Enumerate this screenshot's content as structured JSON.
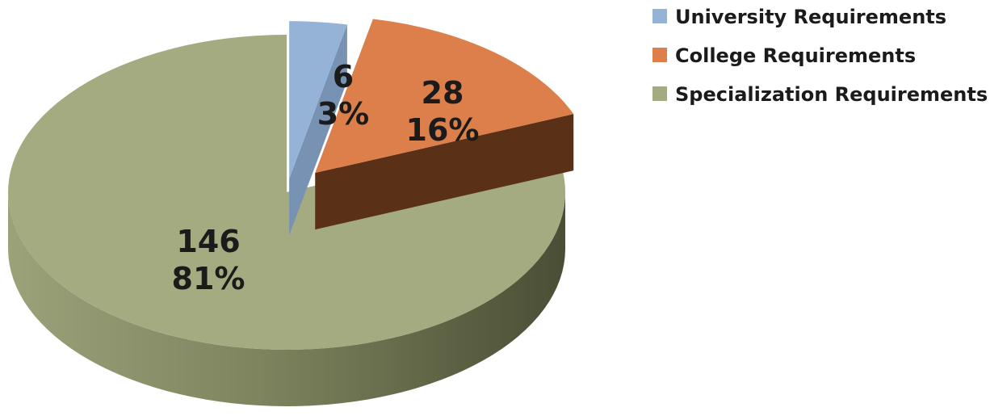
{
  "chart_data": {
    "type": "pie",
    "style": "3d-exploded",
    "title": "",
    "legend_position": "top-right",
    "series": [
      {
        "name": "",
        "values": [
          6,
          28,
          146
        ]
      }
    ],
    "categories": [
      "University Requirements",
      "College Requirements",
      "Specialization Requirements"
    ],
    "slices": [
      {
        "label": "University Requirements",
        "value": 6,
        "value_label": "6",
        "percent_label": "3%",
        "color": "#95b3d7",
        "side_color": "#7892b4"
      },
      {
        "label": "College Requirements",
        "value": 28,
        "value_label": "28",
        "percent_label": "16%",
        "color": "#dd7f4b",
        "side_color": "#5a3017"
      },
      {
        "label": "Specialization Requirements",
        "value": 146,
        "value_label": "146",
        "percent_label": "81%",
        "color": "#a4ab80",
        "side_color": "#6e7452"
      }
    ]
  }
}
